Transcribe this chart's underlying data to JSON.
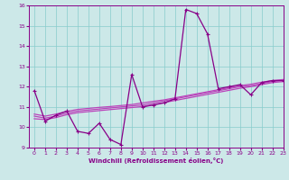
{
  "xlabel": "Windchill (Refroidissement éolien,°C)",
  "x_ticks": [
    0,
    1,
    2,
    3,
    4,
    5,
    6,
    7,
    8,
    9,
    10,
    11,
    12,
    13,
    14,
    15,
    16,
    17,
    18,
    19,
    20,
    21,
    22,
    23
  ],
  "ylim": [
    9,
    16
  ],
  "xlim": [
    -0.5,
    23
  ],
  "yticks": [
    9,
    10,
    11,
    12,
    13,
    14,
    15,
    16
  ],
  "background_color": "#cce8e8",
  "line_color": "#880088",
  "line_color2": "#bb44bb",
  "lines": [
    [
      11.8,
      10.3,
      10.6,
      10.8,
      9.8,
      9.7,
      10.2,
      9.4,
      9.15,
      12.6,
      11.0,
      11.1,
      11.2,
      11.4,
      15.8,
      15.6,
      14.6,
      11.9,
      12.0,
      12.1,
      11.6,
      12.2,
      12.3,
      12.3
    ],
    [
      10.55,
      10.45,
      10.55,
      10.7,
      10.8,
      10.85,
      10.9,
      10.95,
      11.0,
      11.05,
      11.1,
      11.2,
      11.3,
      11.4,
      11.5,
      11.6,
      11.7,
      11.8,
      11.9,
      12.0,
      12.05,
      12.15,
      12.25,
      12.3
    ],
    [
      10.65,
      10.55,
      10.65,
      10.78,
      10.88,
      10.93,
      10.98,
      11.02,
      11.07,
      11.12,
      11.2,
      11.28,
      11.35,
      11.45,
      11.55,
      11.65,
      11.75,
      11.85,
      11.95,
      12.05,
      12.12,
      12.22,
      12.3,
      12.35
    ],
    [
      10.42,
      10.38,
      10.48,
      10.62,
      10.72,
      10.77,
      10.82,
      10.87,
      10.92,
      10.97,
      11.02,
      11.12,
      11.22,
      11.32,
      11.42,
      11.52,
      11.62,
      11.72,
      11.82,
      11.92,
      12.0,
      12.1,
      12.2,
      12.25
    ]
  ]
}
